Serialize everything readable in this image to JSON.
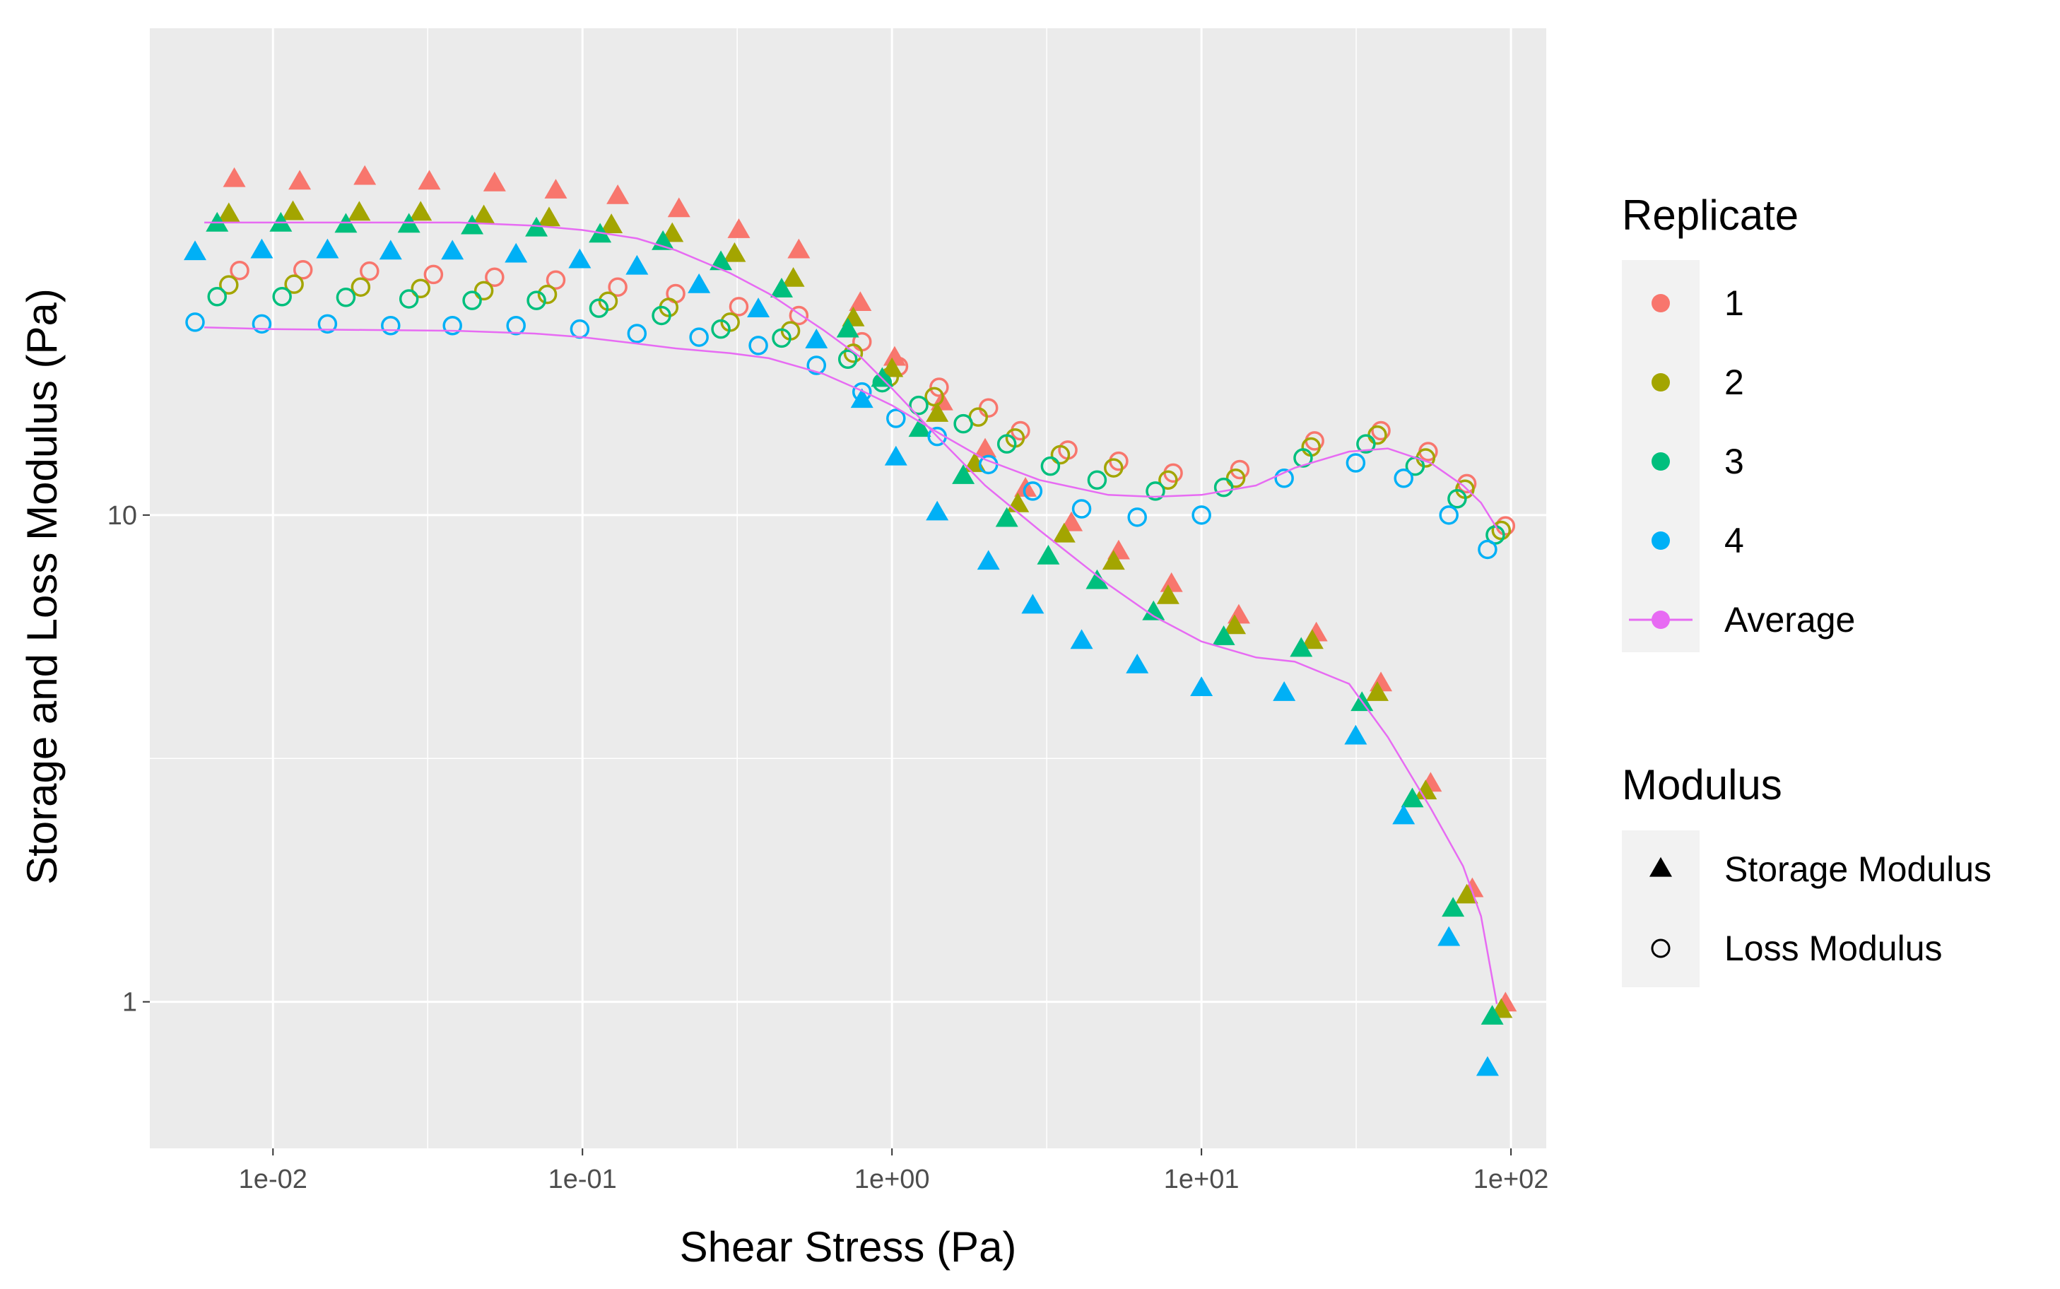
{
  "chart_data": {
    "type": "scatter",
    "title": "",
    "xlabel": "Shear Stress (Pa)",
    "ylabel": "Storage and Loss Modulus (Pa)",
    "x_scale": "log10",
    "y_scale": "log10",
    "xlim": [
      0.004,
      130
    ],
    "ylim": [
      0.5,
      100
    ],
    "x_ticks": [
      {
        "value": 0.01,
        "label": "1e-02"
      },
      {
        "value": 0.1,
        "label": "1e-01"
      },
      {
        "value": 1,
        "label": "1e+00"
      },
      {
        "value": 10,
        "label": "1e+01"
      },
      {
        "value": 100,
        "label": "1e+02"
      }
    ],
    "y_ticks": [
      {
        "value": 1,
        "label": "1"
      },
      {
        "value": 10,
        "label": "10"
      }
    ],
    "grid": true,
    "legend": {
      "position": "right",
      "replicate_title": "Replicate",
      "replicate_items": [
        {
          "label": "1",
          "color": "#F8766D"
        },
        {
          "label": "2",
          "color": "#A3A500"
        },
        {
          "label": "3",
          "color": "#00BF7D"
        },
        {
          "label": "4",
          "color": "#00B0F6"
        },
        {
          "label": "Average",
          "color": "#E76BF3"
        }
      ],
      "modulus_title": "Modulus",
      "modulus_items": [
        {
          "label": "Storage Modulus",
          "shape": "filled-triangle"
        },
        {
          "label": "Loss Modulus",
          "shape": "open-circle"
        }
      ]
    },
    "series": [
      {
        "name": "Replicate 1",
        "color": "#F8766D",
        "storage_modulus": {
          "x": [
            0.0075,
            0.0122,
            0.0198,
            0.032,
            0.052,
            0.082,
            0.13,
            0.205,
            0.32,
            0.5,
            0.79,
            1.02,
            1.45,
            2.0,
            2.7,
            3.8,
            5.4,
            8.0,
            13.2,
            23.5,
            38.0,
            55.0,
            75.0,
            96.0
          ],
          "y": [
            48.9,
            48.3,
            49.4,
            48.3,
            47.9,
            46.3,
            45.1,
            42.4,
            38.4,
            34.9,
            27.2,
            21.0,
            17.0,
            13.6,
            11.3,
            9.6,
            8.4,
            7.2,
            6.2,
            5.7,
            4.5,
            2.8,
            1.7,
            0.99
          ]
        },
        "loss_modulus": {
          "x": [
            0.0078,
            0.0125,
            0.0205,
            0.033,
            0.052,
            0.082,
            0.13,
            0.2,
            0.32,
            0.5,
            0.8,
            1.05,
            1.42,
            2.05,
            2.6,
            3.7,
            5.4,
            8.1,
            13.3,
            23.2,
            38.0,
            54.0,
            72.0,
            96.0
          ],
          "y": [
            31.8,
            31.9,
            31.7,
            31.2,
            30.8,
            30.4,
            29.4,
            28.5,
            26.8,
            25.7,
            22.7,
            20.2,
            18.3,
            16.6,
            14.9,
            13.6,
            12.9,
            12.2,
            12.4,
            14.2,
            14.9,
            13.5,
            11.6,
            9.5
          ]
        }
      },
      {
        "name": "Replicate 2",
        "color": "#A3A500",
        "storage_modulus": {
          "x": [
            0.0072,
            0.0116,
            0.019,
            0.03,
            0.048,
            0.078,
            0.124,
            0.195,
            0.31,
            0.48,
            0.75,
            1.0,
            1.4,
            1.85,
            2.55,
            3.6,
            5.2,
            7.8,
            12.8,
            22.8,
            37.0,
            53.0,
            72.0,
            93.0
          ],
          "y": [
            41.4,
            41.8,
            41.7,
            41.7,
            41.0,
            40.6,
            39.3,
            37.7,
            34.3,
            30.5,
            25.3,
            19.9,
            16.1,
            12.7,
            10.5,
            9.1,
            8.0,
            6.8,
            5.9,
            5.5,
            4.3,
            2.7,
            1.65,
            0.96
          ]
        },
        "loss_modulus": {
          "x": [
            0.0072,
            0.0117,
            0.0192,
            0.03,
            0.048,
            0.077,
            0.121,
            0.19,
            0.3,
            0.47,
            0.75,
            0.98,
            1.37,
            1.9,
            2.5,
            3.5,
            5.2,
            7.8,
            12.9,
            22.6,
            37.0,
            53.0,
            71.0,
            93.0
          ],
          "y": [
            29.7,
            29.8,
            29.4,
            29.2,
            28.9,
            28.4,
            27.5,
            26.7,
            24.9,
            23.9,
            21.5,
            19.2,
            17.5,
            15.9,
            14.4,
            13.3,
            12.5,
            11.8,
            11.9,
            13.8,
            14.6,
            13.1,
            11.3,
            9.3
          ]
        }
      },
      {
        "name": "Replicate 3",
        "color": "#00BF7D",
        "storage_modulus": {
          "x": [
            0.0066,
            0.0106,
            0.0172,
            0.0275,
            0.044,
            0.071,
            0.114,
            0.182,
            0.28,
            0.44,
            0.72,
            0.93,
            1.23,
            1.7,
            2.35,
            3.2,
            4.6,
            7.0,
            11.8,
            21.0,
            33.0,
            48.0,
            65.0,
            87.0
          ],
          "y": [
            39.6,
            39.6,
            39.4,
            39.4,
            39.1,
            38.7,
            37.6,
            36.3,
            33.0,
            29.0,
            24.0,
            19.0,
            15.0,
            12.0,
            9.8,
            8.2,
            7.3,
            6.3,
            5.6,
            5.3,
            4.1,
            2.6,
            1.55,
            0.93
          ]
        },
        "loss_modulus": {
          "x": [
            0.0066,
            0.0107,
            0.0172,
            0.0275,
            0.044,
            0.071,
            0.113,
            0.18,
            0.28,
            0.44,
            0.72,
            0.93,
            1.22,
            1.7,
            2.35,
            3.25,
            4.6,
            7.1,
            11.8,
            21.3,
            34.0,
            49.0,
            67.0,
            89.0
          ],
          "y": [
            28.1,
            28.1,
            28.0,
            27.8,
            27.6,
            27.6,
            26.6,
            25.7,
            24.1,
            23.1,
            20.9,
            18.7,
            16.8,
            15.4,
            14.0,
            12.6,
            11.8,
            11.2,
            11.4,
            13.1,
            14.0,
            12.6,
            10.8,
            9.1
          ]
        }
      },
      {
        "name": "Replicate 4",
        "color": "#00B0F6",
        "storage_modulus": {
          "x": [
            0.0056,
            0.0092,
            0.015,
            0.024,
            0.038,
            0.061,
            0.098,
            0.15,
            0.238,
            0.37,
            0.57,
            0.8,
            1.03,
            1.4,
            2.05,
            2.85,
            4.1,
            6.2,
            10.0,
            18.5,
            31.5,
            45.0,
            63.0,
            84.0
          ],
          "y": [
            34.6,
            34.9,
            34.9,
            34.7,
            34.7,
            34.2,
            33.3,
            32.3,
            29.6,
            26.4,
            22.8,
            17.2,
            13.1,
            10.1,
            8.0,
            6.5,
            5.5,
            4.9,
            4.4,
            4.3,
            3.5,
            2.4,
            1.35,
            0.73
          ]
        },
        "loss_modulus": {
          "x": [
            0.0056,
            0.0092,
            0.015,
            0.024,
            0.038,
            0.061,
            0.098,
            0.15,
            0.238,
            0.37,
            0.57,
            0.8,
            1.03,
            1.4,
            2.05,
            2.85,
            4.1,
            6.2,
            10.0,
            18.5,
            31.5,
            45.0,
            63.0,
            84.0
          ],
          "y": [
            24.9,
            24.7,
            24.7,
            24.5,
            24.5,
            24.5,
            24.1,
            23.6,
            23.2,
            22.3,
            20.3,
            17.9,
            15.8,
            14.5,
            12.7,
            11.2,
            10.3,
            9.9,
            10.0,
            11.9,
            12.8,
            11.9,
            10.0,
            8.5
          ]
        }
      }
    ],
    "average": {
      "name": "Average",
      "color": "#E76BF3",
      "storage_modulus": {
        "x": [
          0.006,
          0.01,
          0.02,
          0.04,
          0.07,
          0.1,
          0.15,
          0.2,
          0.3,
          0.4,
          0.6,
          0.8,
          1.0,
          1.4,
          2.0,
          3.0,
          5.0,
          7.0,
          10.0,
          15.0,
          20.0,
          30.0,
          40.0,
          55.0,
          70.0,
          80.0,
          90.0
        ],
        "y": [
          39.9,
          39.9,
          39.9,
          39.9,
          39.3,
          38.5,
          37.0,
          35.0,
          31.4,
          28.5,
          24.0,
          21.0,
          18.2,
          14.5,
          11.5,
          9.3,
          7.2,
          6.2,
          5.5,
          5.1,
          5.0,
          4.5,
          3.5,
          2.5,
          1.9,
          1.5,
          0.99
        ]
      },
      "loss_modulus": {
        "x": [
          0.006,
          0.01,
          0.02,
          0.04,
          0.07,
          0.1,
          0.15,
          0.2,
          0.3,
          0.4,
          0.6,
          0.8,
          1.0,
          1.4,
          2.0,
          3.0,
          5.0,
          7.0,
          10.0,
          15.0,
          20.0,
          30.0,
          40.0,
          55.0,
          70.0,
          80.0,
          90.0
        ],
        "y": [
          24.3,
          24.1,
          24.0,
          23.9,
          23.6,
          23.2,
          22.5,
          22.0,
          21.5,
          21.0,
          19.5,
          18.0,
          16.8,
          14.8,
          13.0,
          11.8,
          11.0,
          10.9,
          11.0,
          11.5,
          12.5,
          13.5,
          13.7,
          12.8,
          11.5,
          10.6,
          9.4
        ]
      }
    }
  }
}
